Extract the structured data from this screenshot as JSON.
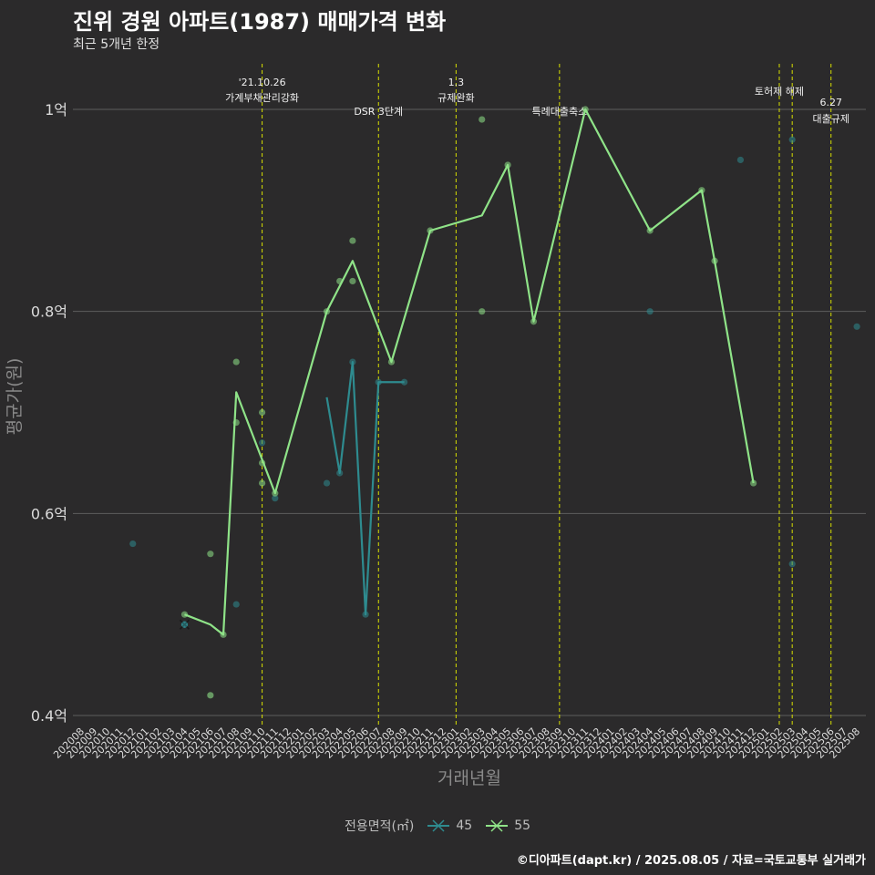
{
  "title": "진위 경원 아파트(1987) 매매가격 변화",
  "subtitle": "최근 5개년 한정",
  "caption": "©디아파트(dapt.kr) / 2025.08.05 / 자료=국토교통부 실거래가",
  "chart_data": {
    "type": "line",
    "xlabel": "거래년월",
    "ylabel": "평균가(원)",
    "ylim": [
      0.4,
      1.0
    ],
    "ytick_values": [
      0.4,
      0.6,
      0.8,
      1.0
    ],
    "ytick_labels": [
      "0.4억",
      "0.6억",
      "0.8억",
      "1억"
    ],
    "categories": [
      "202008",
      "202009",
      "202010",
      "202011",
      "202012",
      "202101",
      "202102",
      "202103",
      "202104",
      "202105",
      "202106",
      "202107",
      "202108",
      "202109",
      "202110",
      "202111",
      "202112",
      "202201",
      "202202",
      "202203",
      "202204",
      "202205",
      "202206",
      "202207",
      "202208",
      "202209",
      "202210",
      "202211",
      "202212",
      "202301",
      "202302",
      "202303",
      "202304",
      "202305",
      "202306",
      "202307",
      "202308",
      "202309",
      "202310",
      "202311",
      "202312",
      "202401",
      "202402",
      "202403",
      "202404",
      "202405",
      "202406",
      "202407",
      "202408",
      "202409",
      "202410",
      "202411",
      "202412",
      "202501",
      "202502",
      "202503",
      "202504",
      "202505",
      "202506",
      "202507",
      "202508"
    ],
    "legend_title": "전용면적(㎡)",
    "series": [
      {
        "name": "45",
        "color": "#2e8b8f",
        "line": [
          [
            "202203",
            0.715
          ],
          [
            "202204",
            0.64
          ],
          [
            "202205",
            0.75
          ],
          [
            "202206",
            0.5
          ],
          [
            "202207",
            0.73
          ],
          [
            "202208",
            0.73
          ],
          [
            "202209",
            0.73
          ]
        ],
        "points": [
          [
            "202012",
            0.57
          ],
          [
            "202104",
            0.49
          ],
          [
            "202104",
            0.49
          ],
          [
            "202108",
            0.51
          ],
          [
            "202110",
            0.67
          ],
          [
            "202111",
            0.615
          ],
          [
            "202203",
            0.63
          ],
          [
            "202204",
            0.64
          ],
          [
            "202205",
            0.75
          ],
          [
            "202206",
            0.5
          ],
          [
            "202207",
            0.73
          ],
          [
            "202209",
            0.73
          ],
          [
            "202404",
            0.8
          ],
          [
            "202411",
            0.95
          ],
          [
            "202503",
            0.97
          ],
          [
            "202503",
            0.55
          ],
          [
            "202508",
            0.785
          ]
        ],
        "crosses": [
          [
            "202104",
            0.49
          ]
        ]
      },
      {
        "name": "55",
        "color": "#8fe388",
        "line": [
          [
            "202104",
            0.5
          ],
          [
            "202106",
            0.49
          ],
          [
            "202107",
            0.48
          ],
          [
            "202108",
            0.72
          ],
          [
            "202111",
            0.62
          ],
          [
            "202203",
            0.8
          ],
          [
            "202205",
            0.85
          ],
          [
            "202208",
            0.75
          ],
          [
            "202211",
            0.88
          ],
          [
            "202303",
            0.895
          ],
          [
            "202305",
            0.945
          ],
          [
            "202307",
            0.79
          ],
          [
            "202311",
            1.0
          ],
          [
            "202404",
            0.88
          ],
          [
            "202408",
            0.92
          ],
          [
            "202409",
            0.85
          ],
          [
            "202412",
            0.63
          ]
        ],
        "points": [
          [
            "202104",
            0.5
          ],
          [
            "202106",
            0.56
          ],
          [
            "202107",
            0.48
          ],
          [
            "202108",
            0.75
          ],
          [
            "202108",
            0.69
          ],
          [
            "202110",
            0.7
          ],
          [
            "202110",
            0.65
          ],
          [
            "202110",
            0.63
          ],
          [
            "202111",
            0.62
          ],
          [
            "202203",
            0.8
          ],
          [
            "202204",
            0.83
          ],
          [
            "202205",
            0.87
          ],
          [
            "202205",
            0.83
          ],
          [
            "202208",
            0.75
          ],
          [
            "202211",
            0.88
          ],
          [
            "202303",
            0.99
          ],
          [
            "202303",
            0.8
          ],
          [
            "202305",
            0.945
          ],
          [
            "202307",
            0.79
          ],
          [
            "202311",
            1.0
          ],
          [
            "202404",
            0.88
          ],
          [
            "202408",
            0.92
          ],
          [
            "202409",
            0.85
          ],
          [
            "202412",
            0.63
          ]
        ],
        "crosses": [
          [
            "202106",
            0.42
          ]
        ]
      }
    ],
    "events": [
      {
        "month": "202110",
        "lines": [
          "'21.10.26",
          "가계부채관리강화"
        ],
        "level": "high"
      },
      {
        "month": "202207",
        "lines": [
          "DSR 3단계"
        ],
        "level": "low"
      },
      {
        "month": "202301",
        "lines": [
          "1.3",
          "규제완화"
        ],
        "level": "high"
      },
      {
        "month": "202309",
        "lines": [
          "특례대출축소"
        ],
        "level": "low"
      },
      {
        "month": "202502",
        "lines": [
          "토허제 해제"
        ],
        "level": "mid"
      },
      {
        "month": "202503",
        "lines": [],
        "level": "none"
      },
      {
        "month": "202506",
        "lines": [
          "6.27",
          "대출규제"
        ],
        "level": "low"
      }
    ]
  }
}
